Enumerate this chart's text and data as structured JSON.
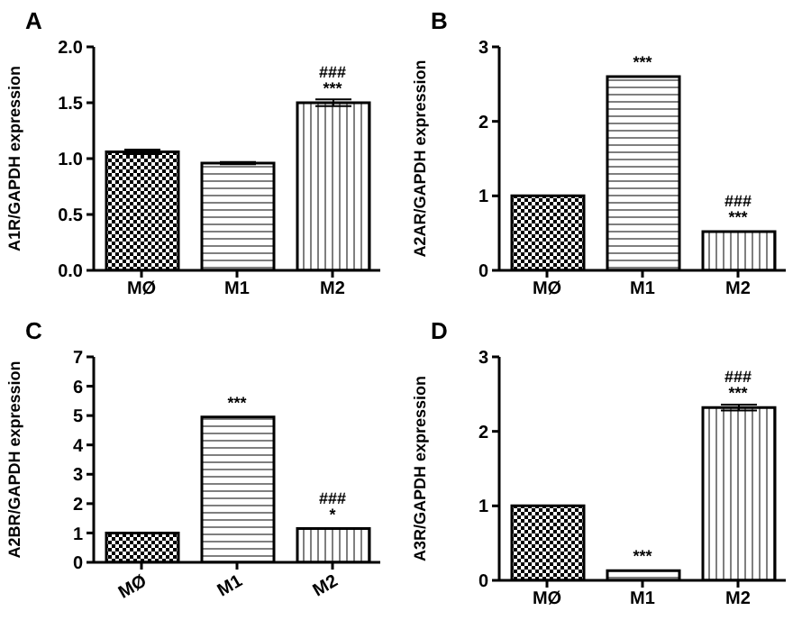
{
  "chart_data": [
    {
      "type": "bar",
      "title": "A",
      "ylabel": "A1R/GAPDH expression",
      "categories": [
        "MØ",
        "M1",
        "M2"
      ],
      "values": [
        1.06,
        0.96,
        1.5
      ],
      "errors": [
        0.02,
        0.01,
        0.03
      ],
      "color": "#000000",
      "ylim": [
        0,
        2
      ],
      "yticks": [
        {
          "value": 0,
          "label": "0.0"
        },
        {
          "value": 0.5,
          "label": "0.5"
        },
        {
          "value": 1,
          "label": "1.0"
        },
        {
          "value": 1.5,
          "label": "1.5"
        },
        {
          "value": 2,
          "label": "2.0"
        }
      ],
      "grid": false,
      "legend": false,
      "annotations": [
        {
          "text": "***",
          "x": "M2",
          "y": 1.5
        },
        {
          "text": "###",
          "x": "M2",
          "y": 1.5
        }
      ]
    },
    {
      "type": "bar",
      "title": "B",
      "ylabel": "A2AR/GAPDH expression",
      "categories": [
        "MØ",
        "M1",
        "M2"
      ],
      "values": [
        1.0,
        2.6,
        0.52
      ],
      "color": "#000000",
      "ylim": [
        0,
        3
      ],
      "yticks": [
        0,
        1,
        2,
        3
      ],
      "grid": false,
      "legend": false,
      "annotations": [
        {
          "text": "***",
          "x": "M1",
          "y": 2.6
        },
        {
          "text": "***",
          "x": "M2",
          "y": 0.52
        },
        {
          "text": "###",
          "x": "M2",
          "y": 0.52
        }
      ]
    },
    {
      "type": "bar",
      "title": "C",
      "ylabel": "A2BR/GAPDH expression",
      "categories": [
        "MØ",
        "M1",
        "M2"
      ],
      "values": [
        1.0,
        4.95,
        1.15
      ],
      "color": "#000000",
      "ylim": [
        0,
        7
      ],
      "yticks": [
        0,
        1,
        2,
        3,
        4,
        5,
        6,
        7
      ],
      "grid": false,
      "legend": false,
      "annotations": [
        {
          "text": "***",
          "x": "M1",
          "y": 4.95
        },
        {
          "text": "*",
          "x": "M2",
          "y": 1.15
        },
        {
          "text": "###",
          "x": "M2",
          "y": 1.15
        }
      ]
    },
    {
      "type": "bar",
      "title": "D",
      "ylabel": "A3R/GAPDH expression",
      "categories": [
        "MØ",
        "M1",
        "M2"
      ],
      "values": [
        1.0,
        0.13,
        2.32
      ],
      "errors": [
        null,
        null,
        0.04
      ],
      "color": "#000000",
      "ylim": [
        0,
        3
      ],
      "yticks": [
        0,
        1,
        2,
        3
      ],
      "grid": false,
      "legend": false,
      "annotations": [
        {
          "text": "***",
          "x": "M1",
          "y": 0.13
        },
        {
          "text": "***",
          "x": "M2",
          "y": 2.32
        },
        {
          "text": "###",
          "x": "M2",
          "y": 2.32
        }
      ]
    }
  ]
}
